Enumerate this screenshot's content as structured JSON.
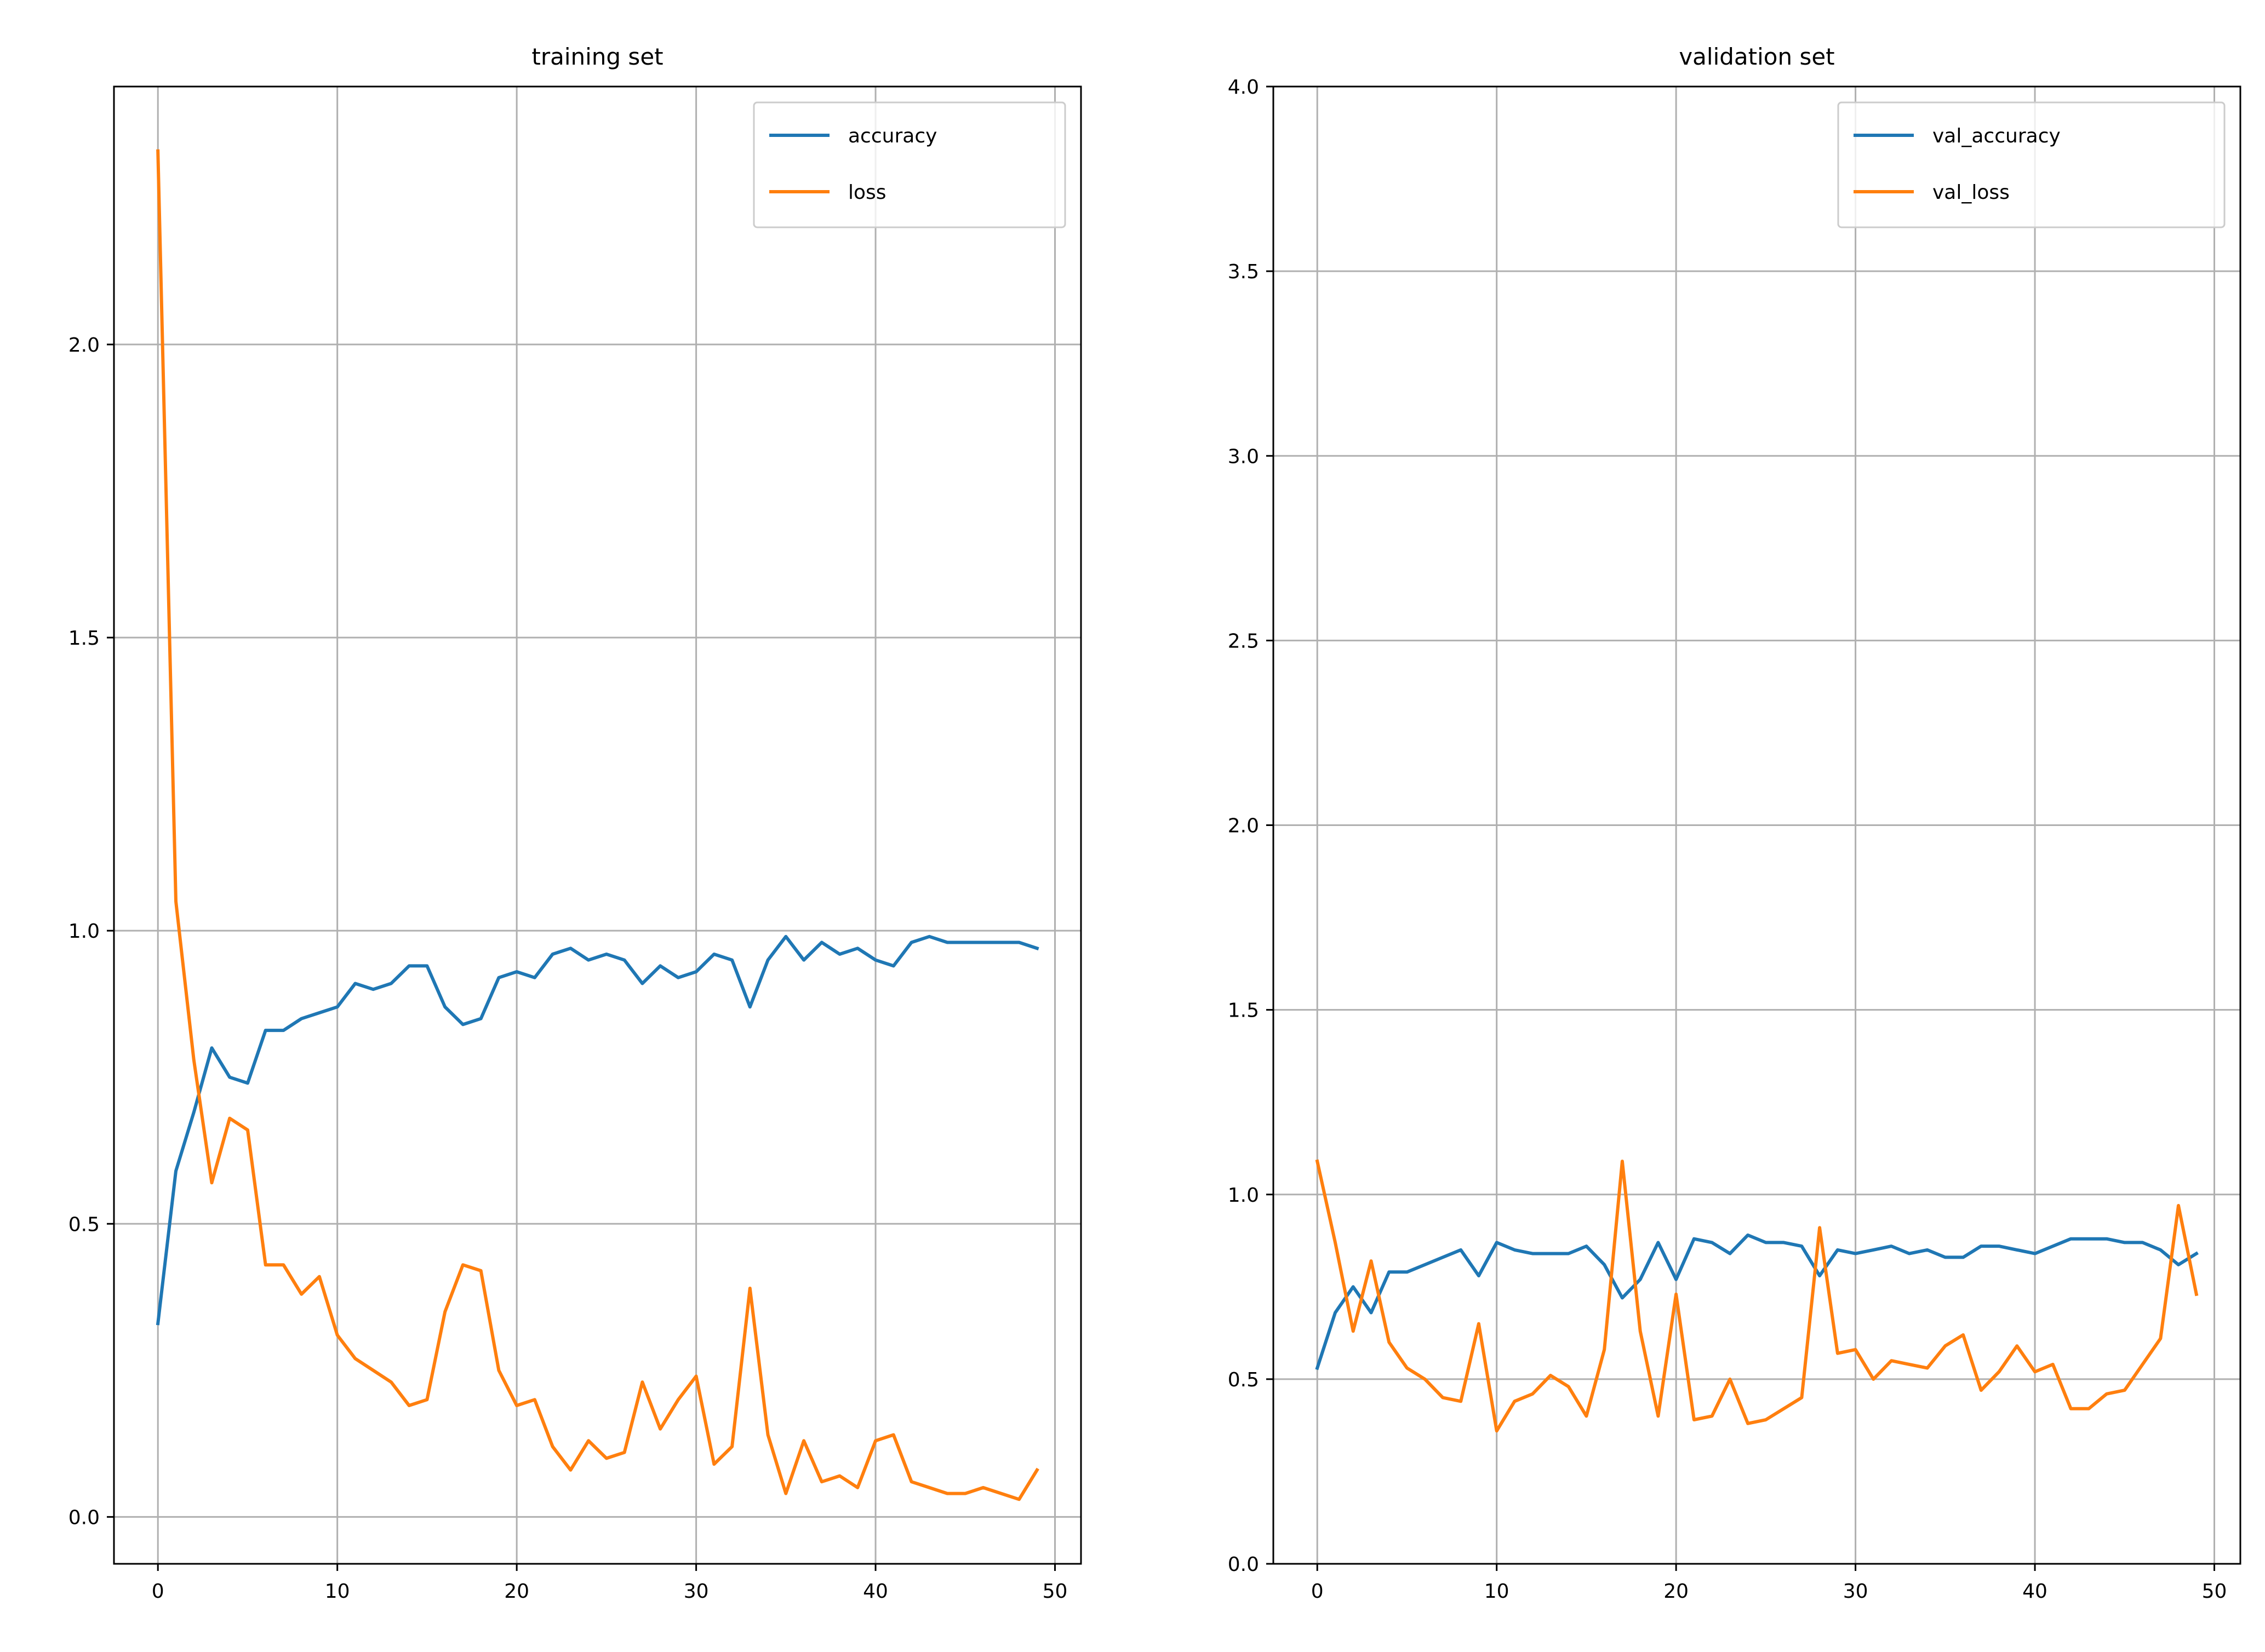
{
  "chart_data": [
    {
      "type": "line",
      "title": "training set",
      "xlabel": "",
      "ylabel": "",
      "xlim": [
        -2.45,
        51.45
      ],
      "ylim": [
        -0.08,
        2.44
      ],
      "xticks": [
        0,
        10,
        20,
        30,
        40,
        50
      ],
      "xtick_labels": [
        "0",
        "10",
        "20",
        "30",
        "40",
        "50"
      ],
      "yticks": [
        0.0,
        0.5,
        1.0,
        1.5,
        2.0
      ],
      "ytick_labels": [
        "0.0",
        "0.5",
        "1.0",
        "1.5",
        "2.0"
      ],
      "grid": true,
      "legend_position": "top-right",
      "x": [
        0,
        1,
        2,
        3,
        4,
        5,
        6,
        7,
        8,
        9,
        10,
        11,
        12,
        13,
        14,
        15,
        16,
        17,
        18,
        19,
        20,
        21,
        22,
        23,
        24,
        25,
        26,
        27,
        28,
        29,
        30,
        31,
        32,
        33,
        34,
        35,
        36,
        37,
        38,
        39,
        40,
        41,
        42,
        43,
        44,
        45,
        46,
        47,
        48,
        49
      ],
      "series": [
        {
          "name": "accuracy",
          "color": "#1f77b4",
          "values": [
            0.33,
            0.59,
            0.69,
            0.8,
            0.75,
            0.74,
            0.83,
            0.83,
            0.85,
            0.86,
            0.87,
            0.91,
            0.9,
            0.91,
            0.94,
            0.94,
            0.87,
            0.84,
            0.85,
            0.92,
            0.93,
            0.92,
            0.96,
            0.97,
            0.95,
            0.96,
            0.95,
            0.91,
            0.94,
            0.92,
            0.93,
            0.96,
            0.95,
            0.87,
            0.95,
            0.99,
            0.95,
            0.98,
            0.96,
            0.97,
            0.95,
            0.94,
            0.98,
            0.99,
            0.98,
            0.98,
            0.98,
            0.98,
            0.98,
            0.97
          ]
        },
        {
          "name": "loss",
          "color": "#ff7f0e",
          "values": [
            2.33,
            1.05,
            0.78,
            0.57,
            0.68,
            0.66,
            0.43,
            0.43,
            0.38,
            0.41,
            0.31,
            0.27,
            0.25,
            0.23,
            0.19,
            0.2,
            0.35,
            0.43,
            0.42,
            0.25,
            0.19,
            0.2,
            0.12,
            0.08,
            0.13,
            0.1,
            0.11,
            0.23,
            0.15,
            0.2,
            0.24,
            0.09,
            0.12,
            0.39,
            0.14,
            0.04,
            0.13,
            0.06,
            0.07,
            0.05,
            0.13,
            0.14,
            0.06,
            0.05,
            0.04,
            0.04,
            0.05,
            0.04,
            0.03,
            0.08
          ]
        }
      ]
    },
    {
      "type": "line",
      "title": "validation set",
      "xlabel": "",
      "ylabel": "",
      "xlim": [
        -2.45,
        51.45
      ],
      "ylim": [
        0.0,
        4.0
      ],
      "xticks": [
        0,
        10,
        20,
        30,
        40,
        50
      ],
      "xtick_labels": [
        "0",
        "10",
        "20",
        "30",
        "40",
        "50"
      ],
      "yticks": [
        0.0,
        0.5,
        1.0,
        1.5,
        2.0,
        2.5,
        3.0,
        3.5,
        4.0
      ],
      "ytick_labels": [
        "0.0",
        "0.5",
        "1.0",
        "1.5",
        "2.0",
        "2.5",
        "3.0",
        "3.5",
        "4.0"
      ],
      "grid": true,
      "legend_position": "top-right",
      "x": [
        0,
        1,
        2,
        3,
        4,
        5,
        6,
        7,
        8,
        9,
        10,
        11,
        12,
        13,
        14,
        15,
        16,
        17,
        18,
        19,
        20,
        21,
        22,
        23,
        24,
        25,
        26,
        27,
        28,
        29,
        30,
        31,
        32,
        33,
        34,
        35,
        36,
        37,
        38,
        39,
        40,
        41,
        42,
        43,
        44,
        45,
        46,
        47,
        48,
        49
      ],
      "series": [
        {
          "name": "val_accuracy",
          "color": "#1f77b4",
          "values": [
            0.53,
            0.68,
            0.75,
            0.68,
            0.79,
            0.79,
            0.81,
            0.83,
            0.85,
            0.78,
            0.87,
            0.85,
            0.84,
            0.84,
            0.84,
            0.86,
            0.81,
            0.72,
            0.77,
            0.87,
            0.77,
            0.88,
            0.87,
            0.84,
            0.89,
            0.87,
            0.87,
            0.86,
            0.78,
            0.85,
            0.84,
            0.85,
            0.86,
            0.84,
            0.85,
            0.83,
            0.83,
            0.86,
            0.86,
            0.85,
            0.84,
            0.86,
            0.88,
            0.88,
            0.88,
            0.87,
            0.87,
            0.85,
            0.81,
            0.84
          ]
        },
        {
          "name": "val_loss",
          "color": "#ff7f0e",
          "values": [
            1.09,
            0.87,
            0.63,
            0.82,
            0.6,
            0.53,
            0.5,
            0.45,
            0.44,
            0.65,
            0.36,
            0.44,
            0.46,
            0.51,
            0.48,
            0.4,
            0.58,
            1.09,
            0.63,
            0.4,
            0.73,
            0.39,
            0.4,
            0.5,
            0.38,
            0.39,
            0.42,
            0.45,
            0.91,
            0.57,
            0.58,
            0.5,
            0.55,
            0.54,
            0.53,
            0.59,
            0.62,
            0.47,
            0.52,
            0.59,
            0.52,
            0.54,
            0.42,
            0.42,
            0.46,
            0.47,
            0.54,
            0.61,
            0.97,
            0.73
          ]
        }
      ]
    }
  ]
}
